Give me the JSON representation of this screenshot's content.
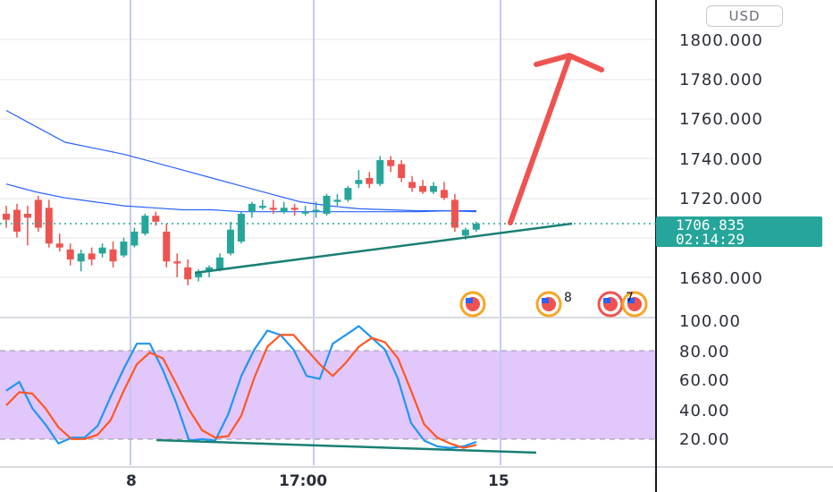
{
  "currency": "USD",
  "last_price": "1706.835",
  "countdown": "02:14:29",
  "price_axis": [
    "1800.000",
    "1780.000",
    "1760.000",
    "1740.000",
    "1720.000",
    "1680.000"
  ],
  "stoch_axis": [
    "100.00",
    "80.00",
    "60.00",
    "40.00",
    "20.00"
  ],
  "time_axis": [
    "8",
    "17:00",
    "15"
  ],
  "event_badges": [
    "8",
    "7"
  ],
  "colors": {
    "up": "#26a69a",
    "down": "#ef5350",
    "ma": "#2962ff",
    "k_line": "#2196f3",
    "d_line": "#ff5722",
    "band": "#e1c7fb",
    "arrow": "#ef5350",
    "trend": "#1a7f74",
    "price_line": "#26a69a"
  },
  "chart_data": [
    {
      "type": "candlestick",
      "ylim": [
        1670,
        1810
      ],
      "ohlc": [
        [
          1712,
          1716,
          1705,
          1709
        ],
        [
          1714,
          1717,
          1700,
          1703
        ],
        [
          1712,
          1716,
          1696,
          1710
        ],
        [
          1719,
          1721,
          1703,
          1705
        ],
        [
          1715,
          1719,
          1695,
          1697
        ],
        [
          1697,
          1702,
          1693,
          1695
        ],
        [
          1694,
          1697,
          1686,
          1689
        ],
        [
          1688,
          1694,
          1683,
          1692
        ],
        [
          1692,
          1695,
          1686,
          1689
        ],
        [
          1692,
          1697,
          1690,
          1695
        ],
        [
          1694,
          1698,
          1685,
          1688
        ],
        [
          1691,
          1700,
          1690,
          1698
        ],
        [
          1696,
          1705,
          1695,
          1703
        ],
        [
          1702,
          1712,
          1701,
          1711
        ],
        [
          1711,
          1713,
          1706,
          1708
        ],
        [
          1703,
          1707,
          1685,
          1688
        ],
        [
          1688,
          1692,
          1680,
          1687
        ],
        [
          1685,
          1689,
          1676,
          1679
        ],
        [
          1680,
          1684,
          1678,
          1683
        ],
        [
          1683,
          1686,
          1680,
          1685
        ],
        [
          1684,
          1692,
          1683,
          1690
        ],
        [
          1692,
          1708,
          1691,
          1704
        ],
        [
          1698,
          1713,
          1697,
          1712
        ],
        [
          1713,
          1718,
          1710,
          1717
        ],
        [
          1715,
          1719,
          1714,
          1716
        ],
        [
          1715,
          1719,
          1712,
          1714
        ],
        [
          1713,
          1718,
          1712,
          1715
        ],
        [
          1715,
          1717,
          1711,
          1714
        ],
        [
          1713,
          1716,
          1711,
          1713
        ],
        [
          1713,
          1718,
          1710,
          1714
        ],
        [
          1712,
          1722,
          1711,
          1721
        ],
        [
          1718,
          1722,
          1716,
          1719
        ],
        [
          1719,
          1726,
          1718,
          1725
        ],
        [
          1727,
          1734,
          1725,
          1729
        ],
        [
          1730,
          1733,
          1725,
          1727
        ],
        [
          1727,
          1741,
          1726,
          1739
        ],
        [
          1739,
          1741,
          1733,
          1736
        ],
        [
          1737,
          1739,
          1728,
          1730
        ],
        [
          1728,
          1731,
          1723,
          1725
        ],
        [
          1726,
          1729,
          1722,
          1723
        ],
        [
          1723,
          1728,
          1722,
          1726
        ],
        [
          1724,
          1728,
          1719,
          1720
        ],
        [
          1719,
          1722,
          1703,
          1705
        ],
        [
          1701,
          1705,
          1699,
          1704
        ],
        [
          1704,
          1708,
          1703,
          1707
        ]
      ],
      "moving_averages": [
        {
          "points": [
            1764,
            1756,
            1748,
            1745,
            1742,
            1738,
            1734,
            1730,
            1726,
            1722,
            1718,
            1716,
            1714.5,
            1714,
            1713.5,
            1713.5,
            1713
          ]
        },
        {
          "points": [
            1727,
            1723,
            1720,
            1718,
            1716,
            1715,
            1714,
            1714,
            1713,
            1713,
            1713,
            1713,
            1713,
            1713,
            1713,
            1713.5,
            1713.5
          ]
        }
      ],
      "annotations": [
        "trend-line",
        "target-arrow",
        "last-price-line"
      ]
    },
    {
      "type": "line",
      "ylim": [
        0,
        100
      ],
      "band": [
        20,
        80
      ],
      "series": [
        {
          "values": [
            52,
            58,
            40,
            29,
            16,
            20,
            20,
            28,
            48,
            67,
            84,
            84,
            66,
            44,
            18,
            19,
            18,
            36,
            62,
            80,
            93,
            90,
            80,
            62,
            60,
            84,
            90,
            96,
            88,
            80,
            60,
            30,
            18,
            14,
            13,
            14,
            17
          ]
        },
        {
          "values": [
            42,
            51,
            50,
            40,
            27,
            19,
            19,
            22,
            32,
            52,
            70,
            78,
            74,
            57,
            39,
            25,
            20,
            21,
            35,
            61,
            82,
            90,
            90,
            80,
            70,
            62,
            71,
            82,
            88,
            85,
            74,
            52,
            29,
            20,
            16,
            13,
            15
          ]
        }
      ]
    }
  ]
}
